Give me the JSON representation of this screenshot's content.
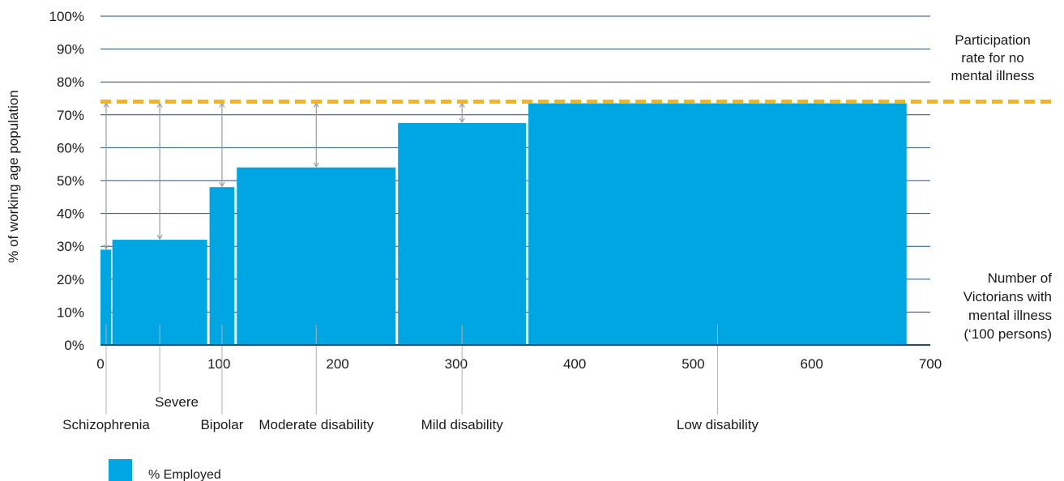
{
  "chart_data": {
    "type": "bar",
    "bar_style": "variable-width",
    "ylabel": "% of working age population",
    "xlabel": "Number of Victorians with mental illness ('100 persons)",
    "xlabel_lines": [
      "Number of",
      "Victorians with",
      "mental illness",
      "(‘100 persons)"
    ],
    "xlim": [
      0,
      700
    ],
    "ylim": [
      0,
      100
    ],
    "x_ticks": [
      "0",
      "100",
      "200",
      "300",
      "400",
      "500",
      "600",
      "700"
    ],
    "y_ticks": [
      "0%",
      "10%",
      "20%",
      "30%",
      "40%",
      "50%",
      "60%",
      "70%",
      "80%",
      "90%",
      "100%"
    ],
    "grid": true,
    "legend": {
      "position": "bottom-left",
      "label": "% Employed",
      "color": "#00a6e2"
    },
    "bar_color": "#00a6e2",
    "grid_color": "#1f4e79",
    "reference_line": {
      "value": 74,
      "color": "#f2b619",
      "label_lines": [
        "Participation",
        "rate for no",
        "mental illness"
      ]
    },
    "categories": [
      "Schizophrenia",
      "Severe",
      "Bipolar",
      "Moderate disability",
      "Mild disability",
      "Low disability"
    ],
    "bars": [
      {
        "category": "Schizophrenia",
        "x_start": 0,
        "x_end": 9,
        "value": 29,
        "label_row": 2
      },
      {
        "category": "Severe",
        "x_start": 10,
        "x_end": 90,
        "value": 32,
        "label_row": 1
      },
      {
        "category": "Bipolar",
        "x_start": 92,
        "x_end": 113,
        "value": 48,
        "label_row": 2
      },
      {
        "category": "Moderate disability",
        "x_start": 115,
        "x_end": 249,
        "value": 54,
        "label_row": 2
      },
      {
        "category": "Mild disability",
        "x_start": 251,
        "x_end": 359,
        "value": 67.5,
        "label_row": 2
      },
      {
        "category": "Low disability",
        "x_start": 361,
        "x_end": 680,
        "value": 73.5,
        "label_row": 2
      }
    ]
  }
}
